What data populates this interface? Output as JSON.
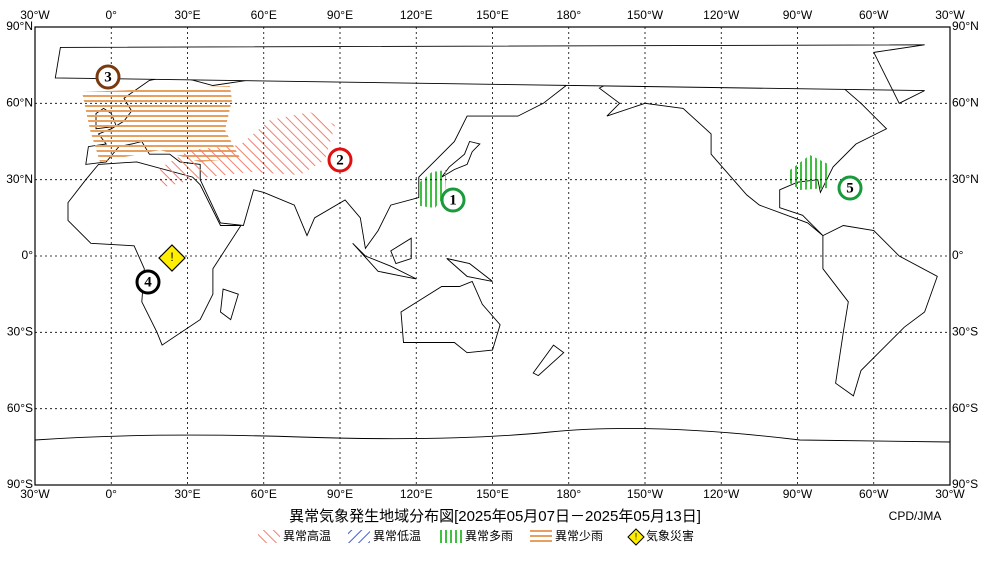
{
  "map": {
    "lon_labels": [
      "30°W",
      "0°",
      "30°E",
      "60°E",
      "90°E",
      "120°E",
      "150°E",
      "180°",
      "150°W",
      "120°W",
      "90°W",
      "60°W",
      "30°W"
    ],
    "lat_labels": [
      "90°N",
      "60°N",
      "30°N",
      "0°",
      "30°S",
      "60°S",
      "90°S"
    ],
    "title": "異常気象発生地域分布図[2025年05月07日－2025年05月13日]",
    "credit": "CPD/JMA",
    "legend": [
      "異常高温",
      "異常低温",
      "異常多雨",
      "異常少雨",
      "気象災害"
    ],
    "hazard_icon": "!",
    "markers": [
      {
        "label": "1",
        "color": "#1a9a3c"
      },
      {
        "label": "2",
        "color": "#e01010"
      },
      {
        "label": "3",
        "color": "#7a3a10"
      },
      {
        "label": "4",
        "color": "#000000"
      },
      {
        "label": "5",
        "color": "#1a9a3c"
      }
    ]
  }
}
